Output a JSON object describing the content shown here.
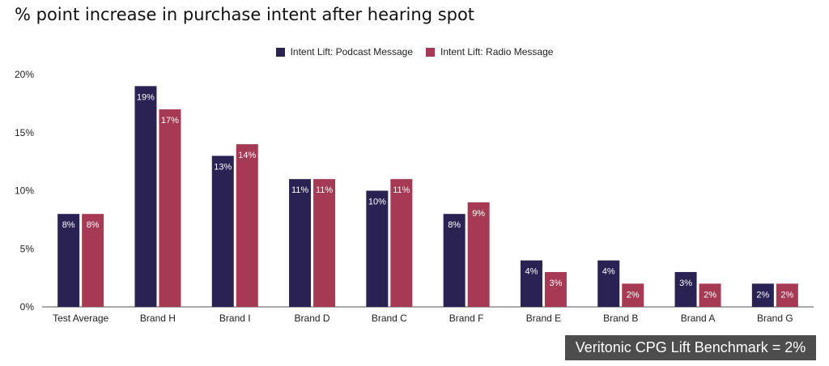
{
  "title": "% point increase in purchase intent after hearing spot",
  "benchmark": "Veritonic CPG Lift Benchmark = 2%",
  "colors": {
    "podcast": "#2a2253",
    "radio": "#a63a55",
    "axis": "#555555"
  },
  "chart_data": {
    "type": "bar",
    "title": "% point increase in purchase intent after hearing spot",
    "xlabel": "",
    "ylabel": "",
    "ylim": [
      0,
      20
    ],
    "yticks": [
      "0%",
      "5%",
      "10%",
      "15%",
      "20%"
    ],
    "grid": false,
    "legend_position": "top-center",
    "categories": [
      "Test Average",
      "Brand H",
      "Brand I",
      "Brand D",
      "Brand C",
      "Brand F",
      "Brand E",
      "Brand B",
      "Brand A",
      "Brand G"
    ],
    "series": [
      {
        "name": "Intent Lift: Podcast Message",
        "values": [
          8,
          19,
          13,
          11,
          10,
          8,
          4,
          4,
          3,
          2
        ],
        "labels": [
          "8%",
          "19%",
          "13%",
          "11%",
          "10%",
          "8%",
          "4%",
          "4%",
          "3%",
          "2%"
        ]
      },
      {
        "name": "Intent Lift: Radio Message",
        "values": [
          8,
          17,
          14,
          11,
          11,
          9,
          3,
          2,
          2,
          2
        ],
        "labels": [
          "8%",
          "17%",
          "14%",
          "11%",
          "11%",
          "9%",
          "3%",
          "2%",
          "2%",
          "2%"
        ]
      }
    ]
  }
}
